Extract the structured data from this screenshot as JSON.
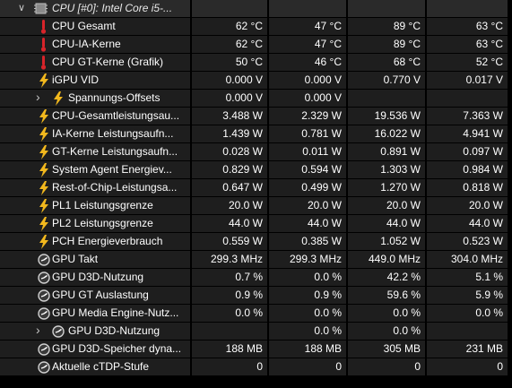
{
  "header": {
    "title": "CPU [#0]: Intel Core i5-..."
  },
  "rows": [
    {
      "label": "CPU Gesamt",
      "icon": "thermometer-icon",
      "v1": "62 °C",
      "v2": "47 °C",
      "v3": "89 °C",
      "v4": "63 °C"
    },
    {
      "label": "CPU-IA-Kerne",
      "icon": "thermometer-icon",
      "v1": "62 °C",
      "v2": "47 °C",
      "v3": "89 °C",
      "v4": "63 °C"
    },
    {
      "label": "CPU GT-Kerne (Grafik)",
      "icon": "thermometer-icon",
      "v1": "50 °C",
      "v2": "46 °C",
      "v3": "68 °C",
      "v4": "52 °C"
    },
    {
      "label": "iGPU VID",
      "icon": "lightning-icon",
      "v1": "0.000 V",
      "v2": "0.000 V",
      "v3": "0.770 V",
      "v4": "0.017 V"
    },
    {
      "label": "Spannungs-Offsets",
      "icon": "lightning-icon",
      "v1": "0.000 V",
      "v2": "0.000 V",
      "v3": "",
      "v4": ""
    },
    {
      "label": "CPU-Gesamtleistungsau...",
      "icon": "lightning-icon",
      "v1": "3.488 W",
      "v2": "2.329 W",
      "v3": "19.536 W",
      "v4": "7.363 W"
    },
    {
      "label": "IA-Kerne Leistungsaufn...",
      "icon": "lightning-icon",
      "v1": "1.439 W",
      "v2": "0.781 W",
      "v3": "16.022 W",
      "v4": "4.941 W"
    },
    {
      "label": "GT-Kerne Leistungsaufn...",
      "icon": "lightning-icon",
      "v1": "0.028 W",
      "v2": "0.011 W",
      "v3": "0.891 W",
      "v4": "0.097 W"
    },
    {
      "label": "System Agent Energiev...",
      "icon": "lightning-icon",
      "v1": "0.829 W",
      "v2": "0.594 W",
      "v3": "1.303 W",
      "v4": "0.984 W"
    },
    {
      "label": "Rest-of-Chip-Leistungsa...",
      "icon": "lightning-icon",
      "v1": "0.647 W",
      "v2": "0.499 W",
      "v3": "1.270 W",
      "v4": "0.818 W"
    },
    {
      "label": "PL1 Leistungsgrenze",
      "icon": "lightning-icon",
      "v1": "20.0 W",
      "v2": "20.0 W",
      "v3": "20.0 W",
      "v4": "20.0 W"
    },
    {
      "label": "PL2 Leistungsgrenze",
      "icon": "lightning-icon",
      "v1": "44.0 W",
      "v2": "44.0 W",
      "v3": "44.0 W",
      "v4": "44.0 W"
    },
    {
      "label": "PCH Energieverbrauch",
      "icon": "lightning-icon",
      "v1": "0.559 W",
      "v2": "0.385 W",
      "v3": "1.052 W",
      "v4": "0.523 W"
    },
    {
      "label": "GPU Takt",
      "icon": "clock-icon",
      "v1": "299.3 MHz",
      "v2": "299.3 MHz",
      "v3": "449.0 MHz",
      "v4": "304.0 MHz"
    },
    {
      "label": "GPU D3D-Nutzung",
      "icon": "clock-icon",
      "v1": "0.7 %",
      "v2": "0.0 %",
      "v3": "42.2 %",
      "v4": "5.1 %"
    },
    {
      "label": "GPU GT Auslastung",
      "icon": "clock-icon",
      "v1": "0.9 %",
      "v2": "0.9 %",
      "v3": "59.6 %",
      "v4": "5.9 %"
    },
    {
      "label": "GPU Media Engine-Nutz...",
      "icon": "clock-icon",
      "v1": "0.0 %",
      "v2": "0.0 %",
      "v3": "0.0 %",
      "v4": "0.0 %"
    },
    {
      "label": "GPU D3D-Nutzung",
      "icon": "clock-icon",
      "v1": "",
      "v2": "0.0 %",
      "v3": "0.0 %",
      "v4": ""
    },
    {
      "label": "GPU D3D-Speicher dyna...",
      "icon": "clock-icon",
      "v1": "188 MB",
      "v2": "188 MB",
      "v3": "305 MB",
      "v4": "231 MB"
    },
    {
      "label": "Aktuelle cTDP-Stufe",
      "icon": "clock-icon",
      "v1": "0",
      "v2": "0",
      "v3": "0",
      "v4": "0"
    }
  ],
  "colors": {
    "background": "#000000",
    "cell": "#1e1e1e",
    "thermometer": "#d8242a",
    "lightning": "#f2b81d",
    "clock": "#c8c8c8"
  }
}
